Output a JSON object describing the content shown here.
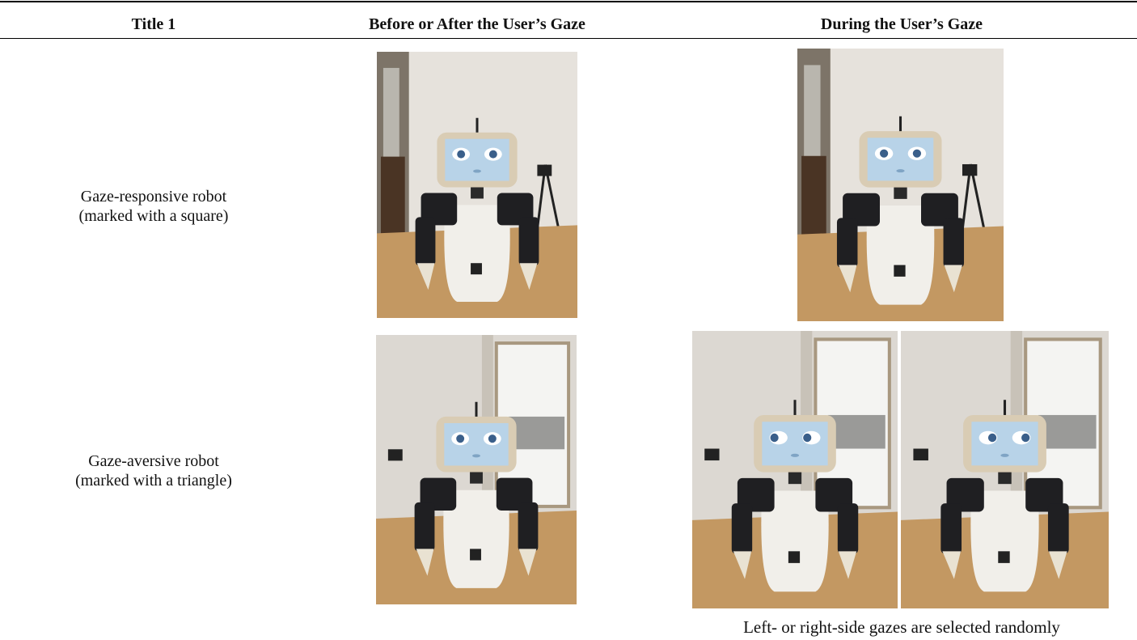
{
  "table": {
    "header": [
      "Title 1",
      "Before or After the User’s Gaze",
      "During the User’s Gaze"
    ],
    "rows": [
      {
        "label": [
          "Gaze-responsive robot",
          "(marked with a square)"
        ]
      },
      {
        "label": [
          "Gaze-aversive robot",
          "(marked with a triangle)"
        ],
        "note": "Left- or right-side gazes are selected randomly"
      }
    ]
  }
}
